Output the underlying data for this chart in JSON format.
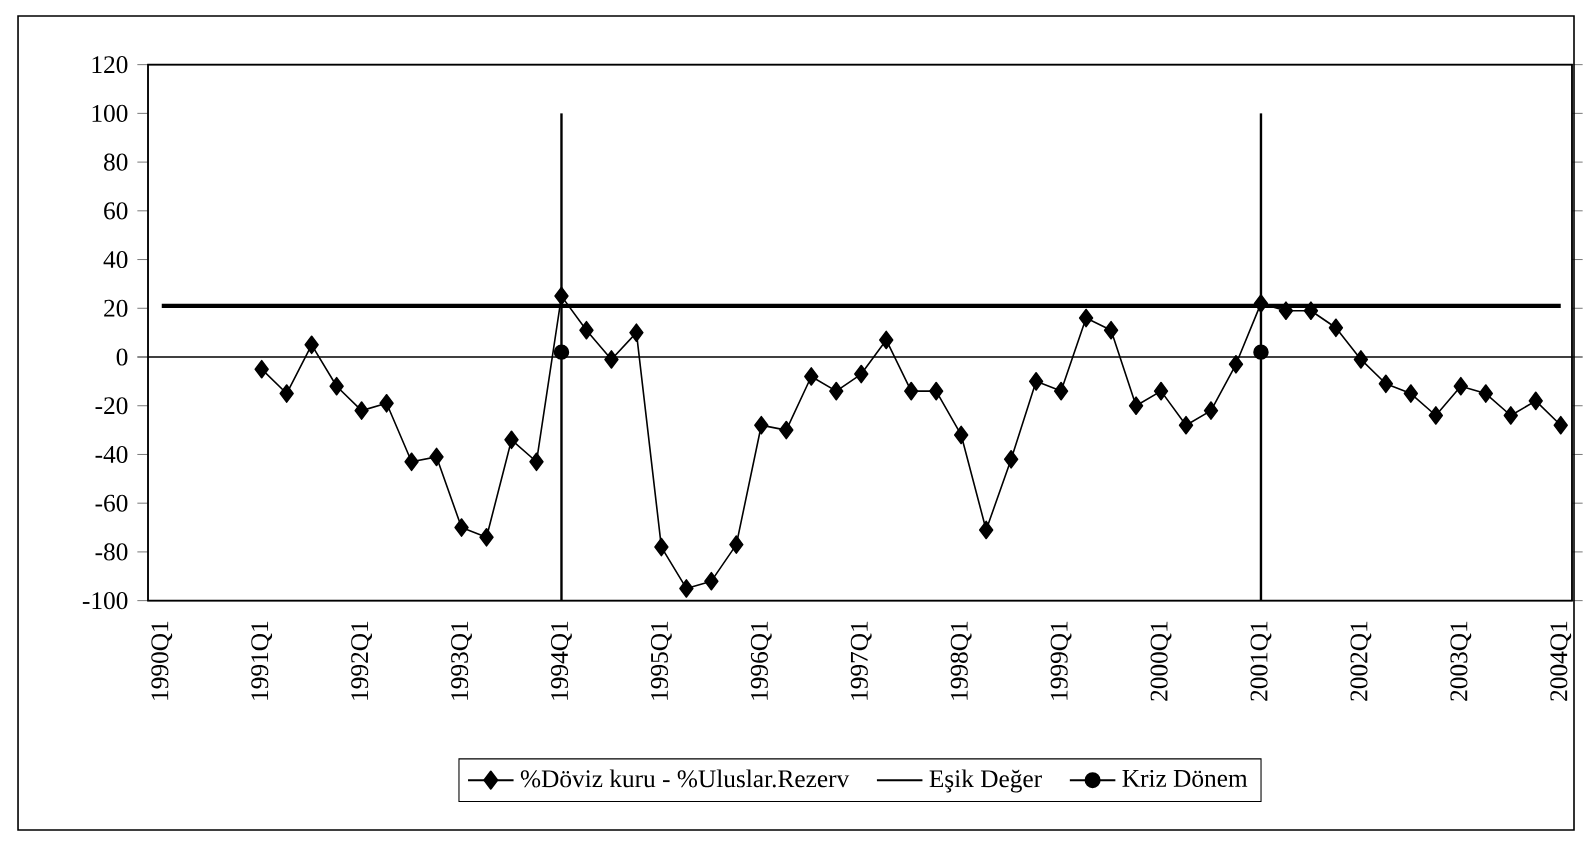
{
  "chart_data": {
    "type": "line",
    "categories": [
      "1990Q1",
      null,
      null,
      null,
      "1991Q1",
      null,
      null,
      null,
      "1992Q1",
      null,
      null,
      null,
      "1993Q1",
      null,
      null,
      null,
      "1994Q1",
      null,
      null,
      null,
      "1995Q1",
      null,
      null,
      null,
      "1996Q1",
      null,
      null,
      null,
      "1997Q1",
      null,
      null,
      null,
      "1998Q1",
      null,
      null,
      null,
      "1999Q1",
      null,
      null,
      null,
      "2000Q1",
      null,
      null,
      null,
      "2001Q1",
      null,
      null,
      null,
      "2002Q1",
      null,
      null,
      null,
      "2003Q1",
      null,
      null,
      null,
      "2004Q1"
    ],
    "series": [
      {
        "name": "%Döviz kuru - %Uluslar.Rezerv",
        "color": "#000000",
        "marker": "diamond",
        "values": [
          null,
          null,
          null,
          null,
          -5,
          -15,
          5,
          -12,
          -22,
          -19,
          -43,
          -41,
          -70,
          -74,
          -34,
          -43,
          25,
          11,
          -1,
          10,
          -78,
          -95,
          -92,
          -77,
          -28,
          -30,
          -8,
          -14,
          -7,
          7,
          -14,
          -14,
          -32,
          -71,
          -42,
          -10,
          -14,
          16,
          11,
          -20,
          -14,
          -28,
          -22,
          -3,
          22,
          19,
          19,
          12,
          -1,
          -11,
          -15,
          -24,
          -12,
          -15,
          -24,
          -18,
          -28
        ]
      },
      {
        "name": "Eşik Değer",
        "color": "#000000",
        "marker": "none",
        "values": [
          21,
          21,
          21,
          21,
          21,
          21,
          21,
          21,
          21,
          21,
          21,
          21,
          21,
          21,
          21,
          21,
          21,
          21,
          21,
          21,
          21,
          21,
          21,
          21,
          21,
          21,
          21,
          21,
          21,
          21,
          21,
          21,
          21,
          21,
          21,
          21,
          21,
          21,
          21,
          21,
          21,
          21,
          21,
          21,
          21,
          21,
          21,
          21,
          21,
          21,
          21,
          21,
          21,
          21,
          21,
          21,
          21
        ]
      },
      {
        "name": "Kriz Dönem",
        "color": "#000000",
        "marker": "circle",
        "values": [
          null,
          null,
          null,
          null,
          null,
          null,
          null,
          null,
          null,
          null,
          null,
          null,
          null,
          null,
          null,
          null,
          2,
          null,
          null,
          null,
          null,
          null,
          null,
          null,
          null,
          null,
          null,
          null,
          null,
          null,
          null,
          null,
          null,
          null,
          null,
          null,
          null,
          null,
          null,
          null,
          null,
          null,
          null,
          null,
          2,
          null,
          null,
          null,
          null,
          null,
          null,
          null,
          null,
          null,
          null,
          null,
          null
        ],
        "errors": [
          null,
          null,
          null,
          null,
          null,
          null,
          null,
          null,
          null,
          null,
          null,
          null,
          null,
          null,
          null,
          null,
          [
            -100,
            100
          ],
          null,
          null,
          null,
          null,
          null,
          null,
          null,
          null,
          null,
          null,
          null,
          null,
          null,
          null,
          null,
          null,
          null,
          null,
          null,
          null,
          null,
          null,
          null,
          null,
          null,
          null,
          null,
          [
            -100,
            100
          ],
          null,
          null,
          null,
          null,
          null,
          null,
          null,
          null,
          null,
          null,
          null,
          null
        ]
      }
    ],
    "ylim": [
      -100,
      120
    ],
    "yticks": [
      -100,
      -80,
      -60,
      -40,
      -20,
      0,
      20,
      40,
      60,
      80,
      100,
      120
    ],
    "grid": false,
    "legend": "bottom"
  }
}
